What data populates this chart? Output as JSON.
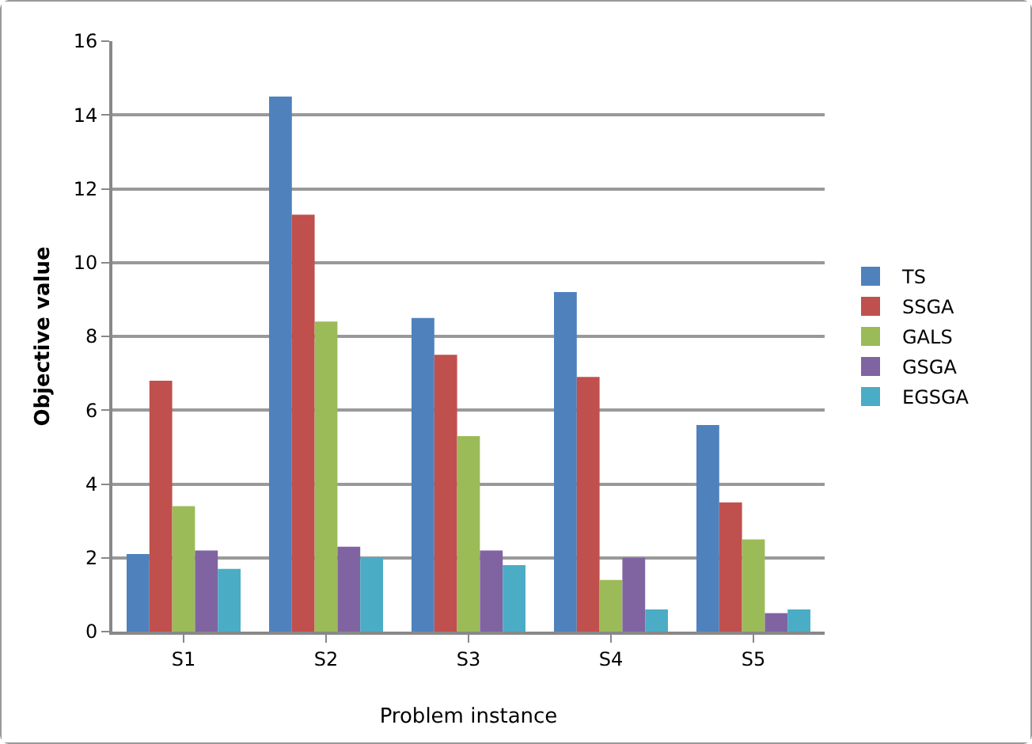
{
  "chart_data": {
    "type": "bar",
    "xlabel": "Problem instance",
    "ylabel": "Objective value",
    "categories": [
      "S1",
      "S2",
      "S3",
      "S4",
      "S5"
    ],
    "series": [
      {
        "name": "TS",
        "color": "#4f81bd",
        "values": [
          2.1,
          14.5,
          8.5,
          9.2,
          5.6
        ]
      },
      {
        "name": "SSGA",
        "color": "#c0504d",
        "values": [
          6.8,
          11.3,
          7.5,
          6.9,
          3.5
        ]
      },
      {
        "name": "GALS",
        "color": "#9bbb59",
        "values": [
          3.4,
          8.4,
          5.3,
          1.4,
          2.5
        ]
      },
      {
        "name": "GSGA",
        "color": "#8064a2",
        "values": [
          2.2,
          2.3,
          2.2,
          2.0,
          0.5
        ]
      },
      {
        "name": "EGSGA",
        "color": "#4bacc6",
        "values": [
          1.7,
          2.0,
          1.8,
          0.6,
          0.6
        ]
      }
    ],
    "ylim": [
      0,
      16
    ],
    "yticks": [
      0,
      2,
      4,
      6,
      8,
      10,
      12,
      14,
      16
    ],
    "grid": "y",
    "legend": "right"
  }
}
